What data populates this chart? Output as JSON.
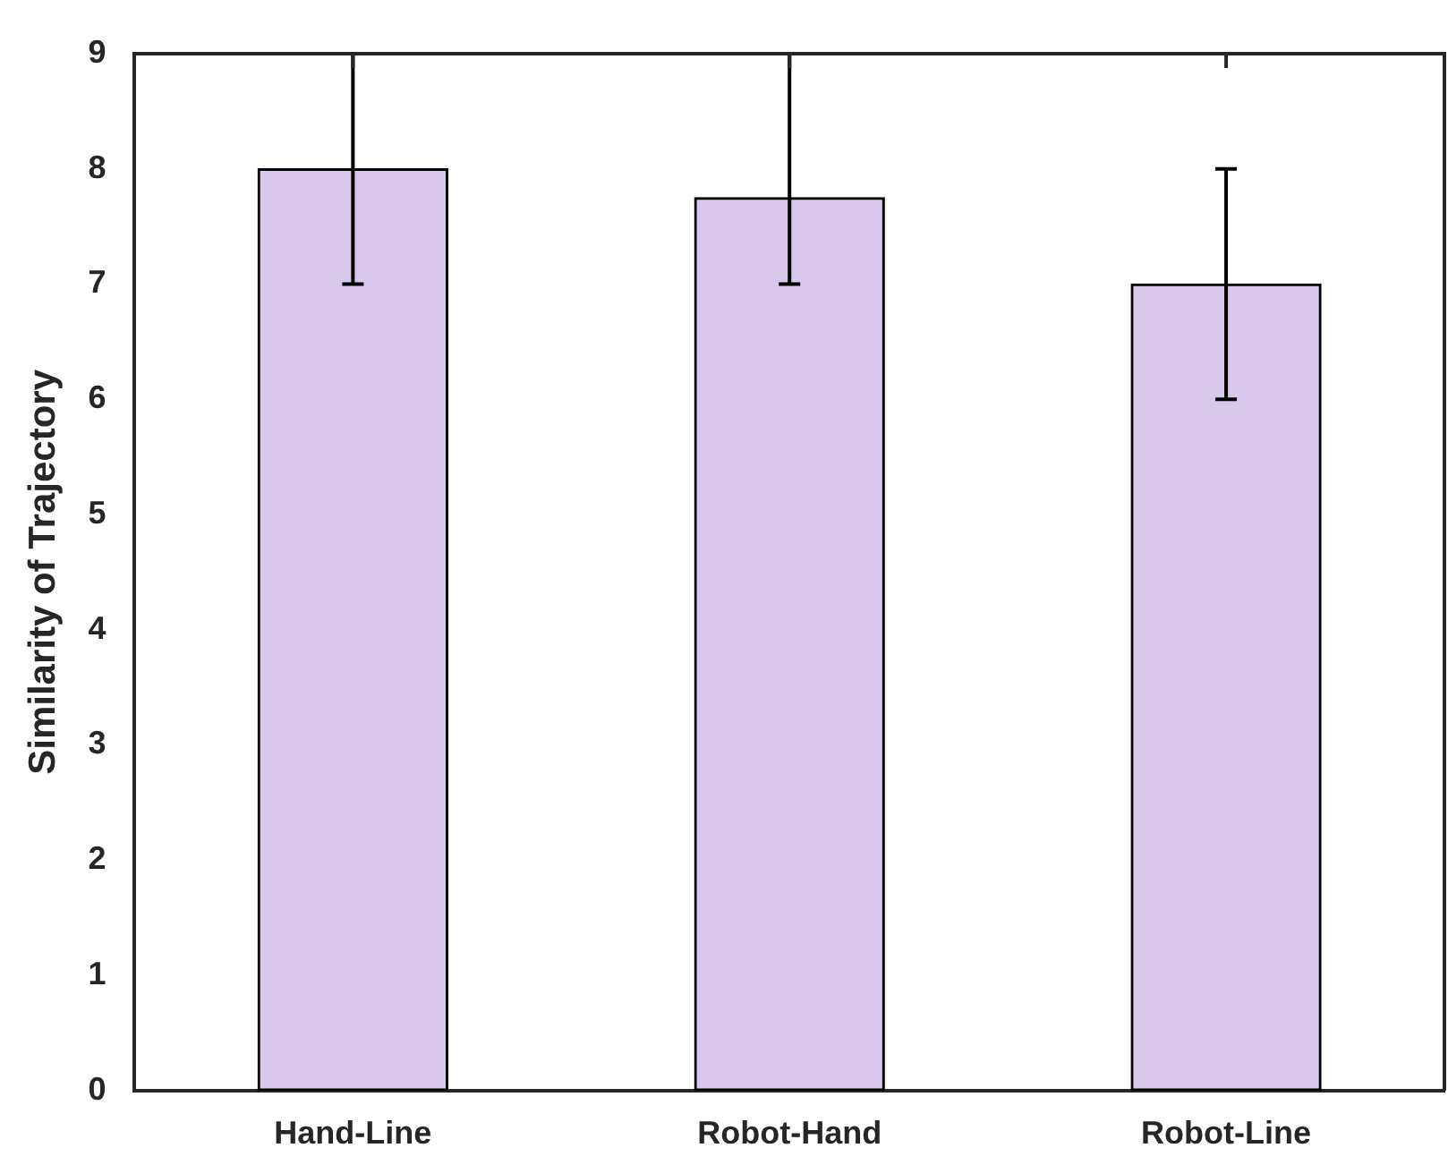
{
  "chart_data": {
    "type": "bar",
    "ylabel": "Similarity of Trajectory",
    "categories": [
      "Hand-Line",
      "Robot-Hand",
      "Robot-Line"
    ],
    "values": [
      8,
      7.75,
      7
    ],
    "color": "#d7c8ec",
    "errors": [
      [
        7,
        9
      ],
      [
        7,
        9
      ],
      [
        6,
        8
      ]
    ],
    "ylim": [
      0,
      9
    ],
    "yticks": [
      0,
      1,
      2,
      3,
      4,
      5,
      6,
      7,
      8,
      9
    ],
    "grid": false,
    "legend": false
  }
}
